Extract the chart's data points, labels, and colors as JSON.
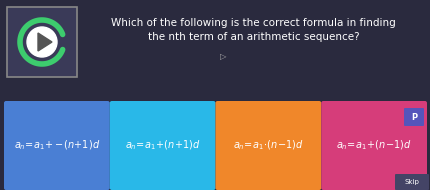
{
  "bg_color": "#2a2a3e",
  "title_line1": "Which of the following is the correct formula in finding",
  "title_line2": "the nth term of an arithmetic sequence?",
  "title_color": "#ffffff",
  "title_fontsize": 7.5,
  "cards": [
    {
      "label": "a_n = a_1 +– (n + 1)d",
      "color": "#4a7fd4",
      "text_color": "#ffffff"
    },
    {
      "label": "a_n = a_1 + (n + 1)d",
      "color": "#29b8e8",
      "text_color": "#ffffff"
    },
    {
      "label": "a_n = a_1 · (n − 1)d",
      "color": "#f0872a",
      "text_color": "#ffffff"
    },
    {
      "label": "a_n = a_1 + (n − 1)d",
      "color": "#d63d7a",
      "text_color": "#ffffff"
    }
  ],
  "card_labels_math": [
    "$a_n = a_1 +\\!-\\!(n + 1)d$",
    "$a_n = a_1 + (n + 1)d$",
    "$a_n = a_1 \\cdot (n - 1)d$",
    "$a_n = a_1 + (n - 1)d$"
  ],
  "card_fontsize": 7,
  "play_bg_color": "#3a3a58",
  "play_border_color": "#888888",
  "play_ring_color": "#3dcc6e",
  "play_arrow_color": "#ffffff",
  "p_button_color": "#5555bb",
  "skip_button_color": "#444466",
  "cursor_char": "▶"
}
